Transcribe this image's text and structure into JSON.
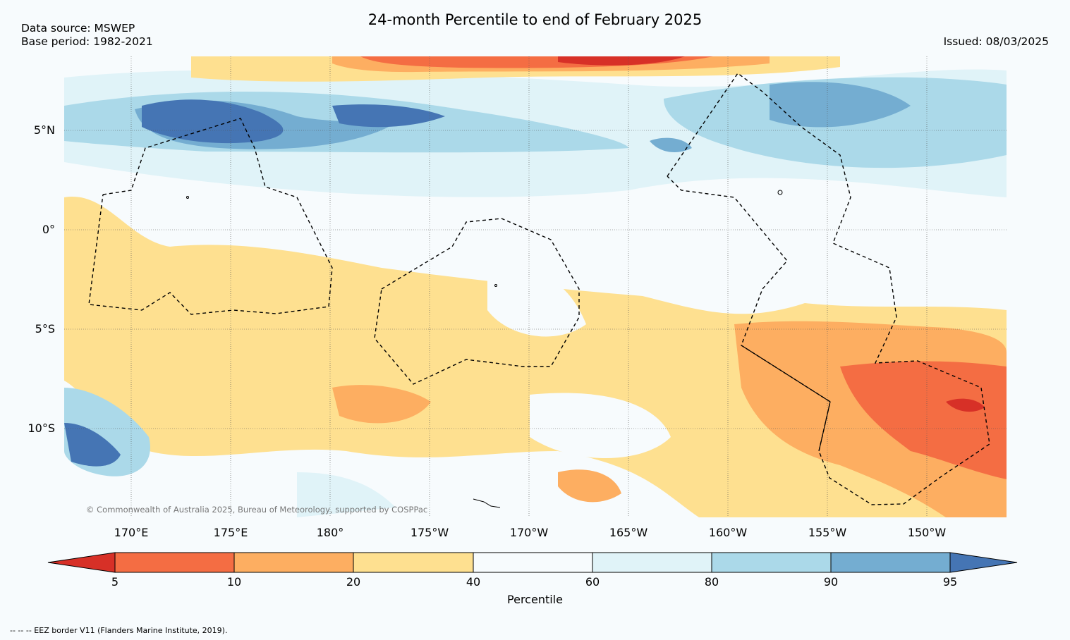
{
  "title": "24-month Percentile to end of February 2025",
  "source_line1": "Data source: MSWEP",
  "source_line2": "Base period: 1982-2021",
  "issued": "Issued: 08/03/2025",
  "copyright": "© Commonwealth of Australia 2025, Bureau of Meteorology, supported by COSPPac",
  "footnote": "--  --  -- EEZ border V11 (Flanders Marine Institute, 2019).",
  "lat_labels": [
    "5°N",
    "0°",
    "5°S",
    "10°S"
  ],
  "lon_labels": [
    "170°E",
    "175°E",
    "180°",
    "175°W",
    "170°W",
    "165°W",
    "160°W",
    "155°W",
    "150°W"
  ],
  "colorbar": {
    "label": "Percentile",
    "ticks": [
      "5",
      "10",
      "20",
      "40",
      "60",
      "80",
      "90",
      "95"
    ],
    "colors": [
      "#d73027",
      "#f46d43",
      "#fdae61",
      "#fee090",
      "#f7fbfd",
      "#e0f3f8",
      "#abd9e9",
      "#74add1",
      "#4575b4"
    ]
  }
}
